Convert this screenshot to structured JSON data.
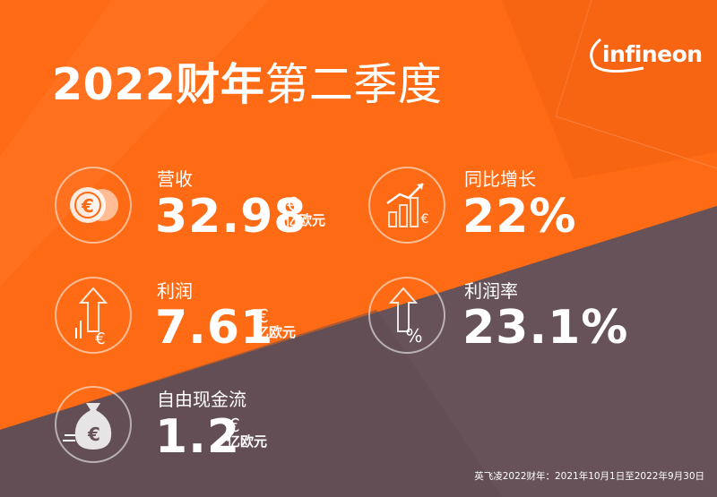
{
  "brand": {
    "logo_text": "infineon"
  },
  "title": {
    "bold_part": "2022财年",
    "regular_part": "第二季度"
  },
  "metrics": [
    {
      "label": "营收",
      "value": "32.98",
      "currency": "€",
      "unit": "亿欧元",
      "icon": "coins-euro-icon"
    },
    {
      "label": "同比增长",
      "value": "22%",
      "currency": "",
      "unit": "",
      "icon": "growth-bar-chart-icon"
    },
    {
      "label": "利润",
      "value": "7.61",
      "currency": "€",
      "unit": "亿欧元",
      "icon": "up-arrow-euro-icon"
    },
    {
      "label": "利润率",
      "value": "23.1%",
      "currency": "",
      "unit": "",
      "icon": "up-arrow-percent-icon"
    },
    {
      "label": "自由现金流",
      "value": "1.2",
      "currency": "€",
      "unit": "亿欧元",
      "icon": "money-bag-euro-icon"
    }
  ],
  "footnote": "英飞凌2022财年：2021年10月1日至2022年9月30日",
  "colors": {
    "orange": "#ff6a14",
    "dark_orange": "#e8570a",
    "slate": "#665258"
  }
}
